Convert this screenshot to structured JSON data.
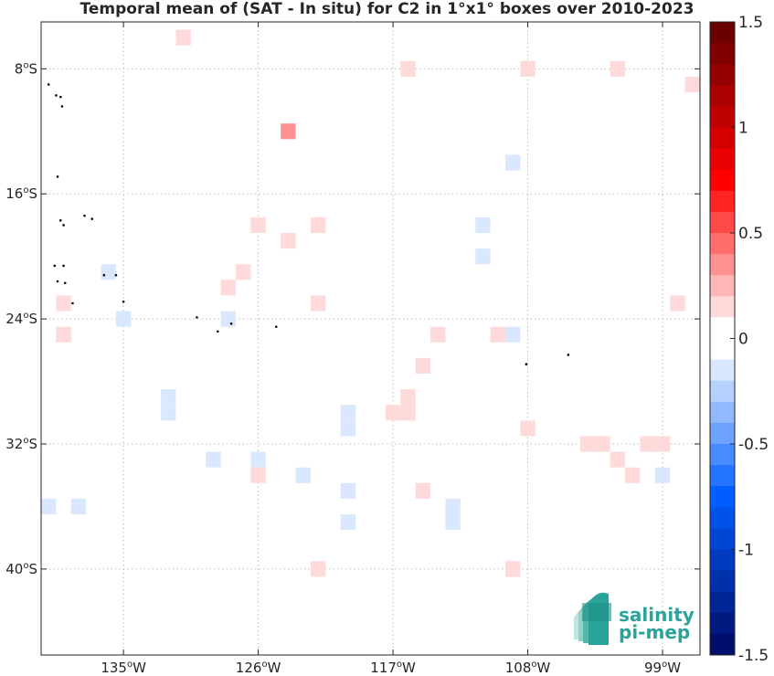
{
  "title": "Temporal mean of (SAT - In situ) for C2 in 1°x1° boxes over 2010-2023",
  "map": {
    "lon_range": [
      -140.5,
      -96.5
    ],
    "lat_range": [
      -45.5,
      -5.0
    ],
    "grid": true,
    "x_ticks": [
      {
        "lon": -135,
        "label": "135",
        "unit": "o",
        "hemi": "W"
      },
      {
        "lon": -126,
        "label": "126",
        "unit": "o",
        "hemi": "W"
      },
      {
        "lon": -117,
        "label": "117",
        "unit": "o",
        "hemi": "W"
      },
      {
        "lon": -108,
        "label": "108",
        "unit": "o",
        "hemi": "W"
      },
      {
        "lon": -99,
        "label": "99",
        "unit": "o",
        "hemi": "W"
      }
    ],
    "y_ticks": [
      {
        "lat": -8,
        "label": "8",
        "unit": "o",
        "hemi": "S"
      },
      {
        "lat": -16,
        "label": "16",
        "unit": "o",
        "hemi": "S"
      },
      {
        "lat": -24,
        "label": "24",
        "unit": "o",
        "hemi": "S"
      },
      {
        "lat": -32,
        "label": "32",
        "unit": "o",
        "hemi": "S"
      },
      {
        "lat": -40,
        "label": "40",
        "unit": "o",
        "hemi": "S"
      }
    ]
  },
  "chart_data": {
    "type": "heatmap",
    "title": "Temporal mean of (SAT - In situ) for C2 in 1°x1° boxes over 2010-2023",
    "xlabel": "",
    "ylabel": "",
    "cells": [
      {
        "lon": -131,
        "lat": -6,
        "v": 0.1
      },
      {
        "lon": -116,
        "lat": -8,
        "v": 0.1
      },
      {
        "lon": -108,
        "lat": -8,
        "v": 0.1
      },
      {
        "lon": -102,
        "lat": -8,
        "v": 0.1
      },
      {
        "lon": -97,
        "lat": -9,
        "v": 0.1
      },
      {
        "lon": -124,
        "lat": -12,
        "v": 0.3
      },
      {
        "lon": -109,
        "lat": -14,
        "v": -0.1
      },
      {
        "lon": -126,
        "lat": -18,
        "v": 0.1
      },
      {
        "lon": -122,
        "lat": -18,
        "v": 0.1
      },
      {
        "lon": -111,
        "lat": -18,
        "v": -0.1
      },
      {
        "lon": -124,
        "lat": -19,
        "v": 0.1
      },
      {
        "lon": -111,
        "lat": -20,
        "v": -0.1
      },
      {
        "lon": -136,
        "lat": -21,
        "v": -0.1
      },
      {
        "lon": -127,
        "lat": -21,
        "v": 0.1
      },
      {
        "lon": -128,
        "lat": -22,
        "v": 0.1
      },
      {
        "lon": -139,
        "lat": -23,
        "v": 0.1
      },
      {
        "lon": -122,
        "lat": -23,
        "v": 0.1
      },
      {
        "lon": -98,
        "lat": -23,
        "v": 0.1
      },
      {
        "lon": -135,
        "lat": -24,
        "v": -0.1
      },
      {
        "lon": -128,
        "lat": -24,
        "v": -0.1
      },
      {
        "lon": -139,
        "lat": -25,
        "v": 0.1
      },
      {
        "lon": -114,
        "lat": -25,
        "v": 0.1
      },
      {
        "lon": -110,
        "lat": -25,
        "v": 0.1
      },
      {
        "lon": -109,
        "lat": -25,
        "v": -0.1
      },
      {
        "lon": -115,
        "lat": -27,
        "v": 0.1
      },
      {
        "lon": -132,
        "lat": -29,
        "v": -0.1
      },
      {
        "lon": -132,
        "lat": -30,
        "v": -0.1
      },
      {
        "lon": -116,
        "lat": -29,
        "v": 0.1
      },
      {
        "lon": -116,
        "lat": -30,
        "v": 0.1
      },
      {
        "lon": -117,
        "lat": -30,
        "v": 0.1
      },
      {
        "lon": -120,
        "lat": -30,
        "v": -0.1
      },
      {
        "lon": -120,
        "lat": -31,
        "v": -0.1
      },
      {
        "lon": -108,
        "lat": -31,
        "v": 0.1
      },
      {
        "lon": -104,
        "lat": -32,
        "v": 0.1
      },
      {
        "lon": -103,
        "lat": -32,
        "v": 0.1
      },
      {
        "lon": -100,
        "lat": -32,
        "v": 0.1
      },
      {
        "lon": -99,
        "lat": -32,
        "v": 0.1
      },
      {
        "lon": -129,
        "lat": -33,
        "v": -0.1
      },
      {
        "lon": -126,
        "lat": -33,
        "v": -0.1
      },
      {
        "lon": -102,
        "lat": -33,
        "v": 0.1
      },
      {
        "lon": -126,
        "lat": -34,
        "v": 0.1
      },
      {
        "lon": -123,
        "lat": -34,
        "v": -0.1
      },
      {
        "lon": -101,
        "lat": -34,
        "v": 0.1
      },
      {
        "lon": -99,
        "lat": -34,
        "v": -0.1
      },
      {
        "lon": -120,
        "lat": -35,
        "v": -0.1
      },
      {
        "lon": -115,
        "lat": -35,
        "v": 0.1
      },
      {
        "lon": -140,
        "lat": -36,
        "v": -0.1
      },
      {
        "lon": -138,
        "lat": -36,
        "v": -0.1
      },
      {
        "lon": -113,
        "lat": -36,
        "v": -0.1
      },
      {
        "lon": -113,
        "lat": -37,
        "v": -0.1
      },
      {
        "lon": -120,
        "lat": -37,
        "v": -0.1
      },
      {
        "lon": -122,
        "lat": -40,
        "v": 0.1
      },
      {
        "lon": -109,
        "lat": -40,
        "v": 0.1
      }
    ],
    "islands": [
      {
        "lon": -140.0,
        "lat": -9.0
      },
      {
        "lon": -139.5,
        "lat": -9.7
      },
      {
        "lon": -139.2,
        "lat": -9.8
      },
      {
        "lon": -139.1,
        "lat": -10.4
      },
      {
        "lon": -139.4,
        "lat": -14.9
      },
      {
        "lon": -139.2,
        "lat": -17.7
      },
      {
        "lon": -139.0,
        "lat": -18.0
      },
      {
        "lon": -137.6,
        "lat": -17.4
      },
      {
        "lon": -137.1,
        "lat": -17.6
      },
      {
        "lon": -139.6,
        "lat": -20.6
      },
      {
        "lon": -139.0,
        "lat": -20.6
      },
      {
        "lon": -139.4,
        "lat": -21.6
      },
      {
        "lon": -138.9,
        "lat": -21.7
      },
      {
        "lon": -136.3,
        "lat": -21.2
      },
      {
        "lon": -135.5,
        "lat": -21.2
      },
      {
        "lon": -135.0,
        "lat": -22.9
      },
      {
        "lon": -138.4,
        "lat": -23.0
      },
      {
        "lon": -130.1,
        "lat": -23.9
      },
      {
        "lon": -127.8,
        "lat": -24.3
      },
      {
        "lon": -124.8,
        "lat": -24.5
      },
      {
        "lon": -128.7,
        "lat": -24.8
      },
      {
        "lon": -108.1,
        "lat": -26.9
      },
      {
        "lon": -105.3,
        "lat": -26.3
      }
    ],
    "colorbar": {
      "min": -1.5,
      "max": 1.5,
      "ticks": [
        {
          "v": 1.5,
          "label": "1.5"
        },
        {
          "v": 1,
          "label": "1"
        },
        {
          "v": 0.5,
          "label": "0.5"
        },
        {
          "v": 0,
          "label": "0"
        },
        {
          "v": -0.5,
          "label": "-0.5"
        },
        {
          "v": -1,
          "label": "-1"
        },
        {
          "v": -1.5,
          "label": "-1.5"
        }
      ],
      "colors_top_to_bottom": [
        "#6b0000",
        "#800000",
        "#950000",
        "#aa0000",
        "#bf0000",
        "#d40000",
        "#e90000",
        "#ff0000",
        "#ff2424",
        "#ff4848",
        "#ff6d6d",
        "#ff9191",
        "#ffb6b6",
        "#ffdada",
        "#ffffff",
        "#ffffff",
        "#dae8ff",
        "#b6d1ff",
        "#91b9ff",
        "#6da2ff",
        "#488bff",
        "#2474ff",
        "#005dff",
        "#0052e9",
        "#0046d4",
        "#003bbf",
        "#0030aa",
        "#002595",
        "#001a80",
        "#000e6b"
      ]
    }
  },
  "logo": {
    "line1": "salinity",
    "line2": "pi-mep",
    "color": "#2aa39a"
  }
}
